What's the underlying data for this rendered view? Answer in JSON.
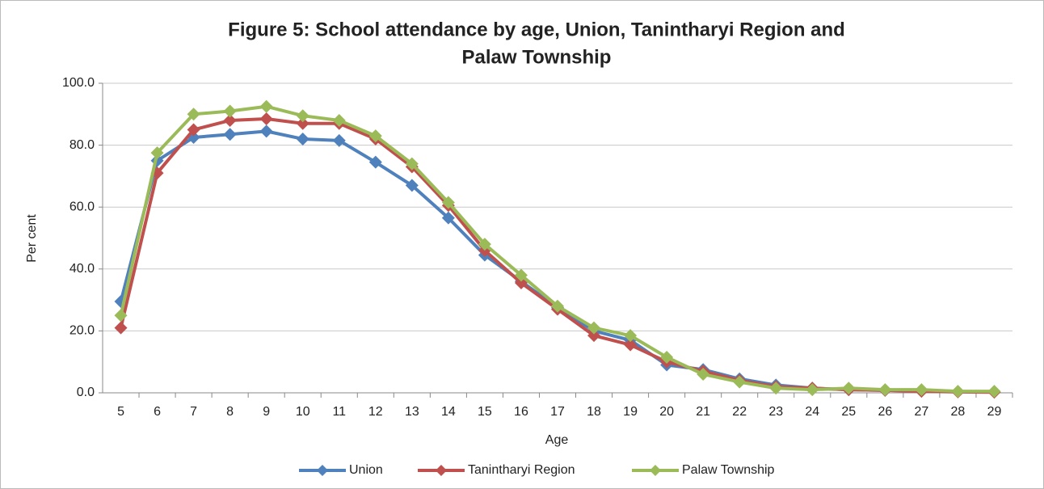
{
  "chart_data": {
    "type": "line",
    "title": [
      "Figure 5:  School attendance by age, Union,  Tanintharyi Region and",
      "Palaw  Township"
    ],
    "x_label": "Age",
    "y_label": "Per cent",
    "categories": [
      5,
      6,
      7,
      8,
      9,
      10,
      11,
      12,
      13,
      14,
      15,
      16,
      17,
      18,
      19,
      20,
      21,
      22,
      23,
      24,
      25,
      26,
      27,
      28,
      29
    ],
    "series": [
      {
        "name": "Union",
        "color": "#4f81bd",
        "values": [
          29.5,
          75,
          82.5,
          83.5,
          84.5,
          82,
          81.5,
          74.5,
          67,
          56.5,
          44.5,
          36,
          27.5,
          20,
          17,
          9,
          7.5,
          4.5,
          2.5,
          1.5,
          1,
          0.8,
          0.6,
          0.4,
          0.3
        ]
      },
      {
        "name": "Tanintharyi Region",
        "color": "#c0504d",
        "values": [
          21,
          71,
          85,
          88,
          88.5,
          87,
          87,
          82,
          73,
          60.5,
          46,
          35.5,
          27,
          18.5,
          15.5,
          10,
          7,
          4,
          2,
          1.5,
          1,
          0.8,
          0.5,
          0.3,
          0.2
        ]
      },
      {
        "name": "Palaw Township",
        "color": "#9bbb59",
        "values": [
          25,
          77.5,
          90,
          91,
          92.5,
          89.5,
          88,
          83,
          74,
          61.5,
          48,
          38,
          28,
          21,
          18.5,
          11.5,
          6,
          3.5,
          1.5,
          1,
          1.5,
          1,
          1,
          0.5,
          0.5
        ]
      }
    ],
    "ylim": [
      0,
      100
    ],
    "yticks": [
      {
        "value": 0,
        "label": "0.0"
      },
      {
        "value": 20,
        "label": "20.0"
      },
      {
        "value": 40,
        "label": "40.0"
      },
      {
        "value": 60,
        "label": "60.0"
      },
      {
        "value": 80,
        "label": "80.0"
      },
      {
        "value": 100,
        "label": "100.0"
      }
    ],
    "grid": true,
    "legend": "bottom"
  }
}
